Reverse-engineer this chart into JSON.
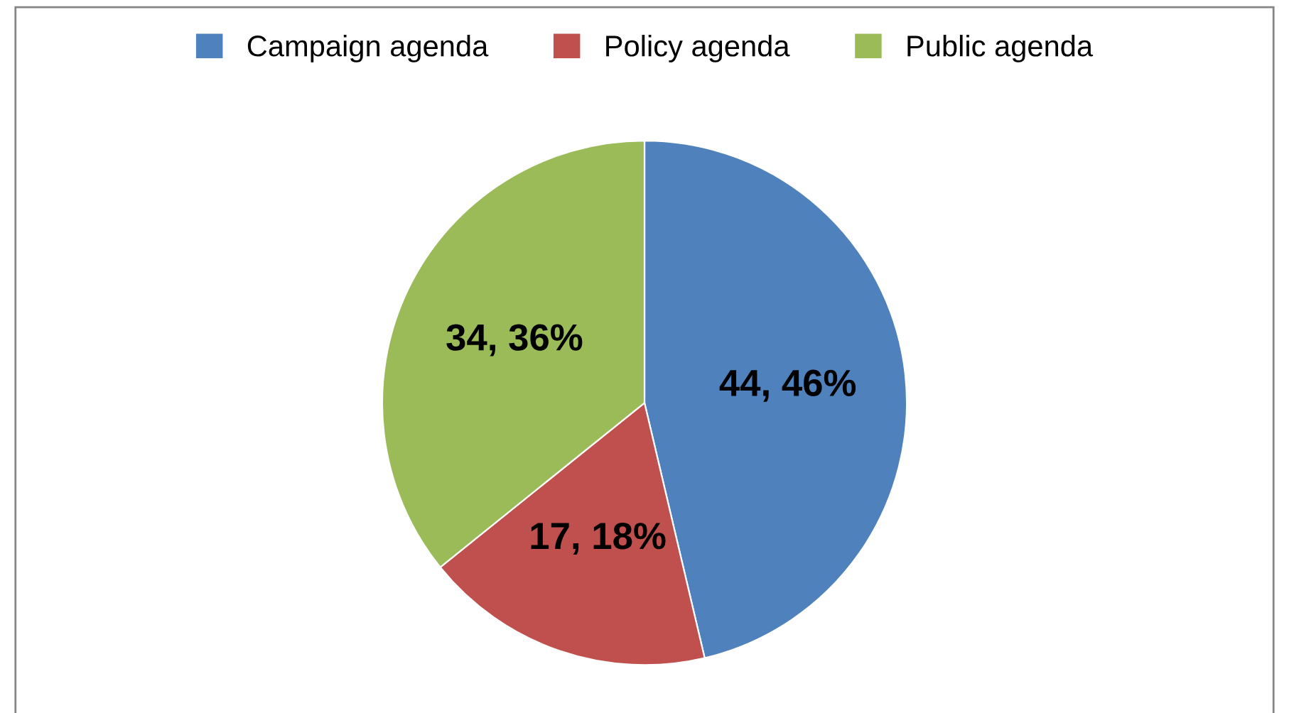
{
  "chart_data": {
    "type": "pie",
    "categories": [
      "Campaign agenda",
      "Policy agenda",
      "Public agenda"
    ],
    "values": [
      44,
      17,
      34
    ],
    "value_labels": [
      "44, 46%",
      "17, 18%",
      "34, 36%"
    ],
    "colors": [
      "#4f81bd",
      "#c0504d",
      "#9bbb59"
    ],
    "legend": "top"
  }
}
